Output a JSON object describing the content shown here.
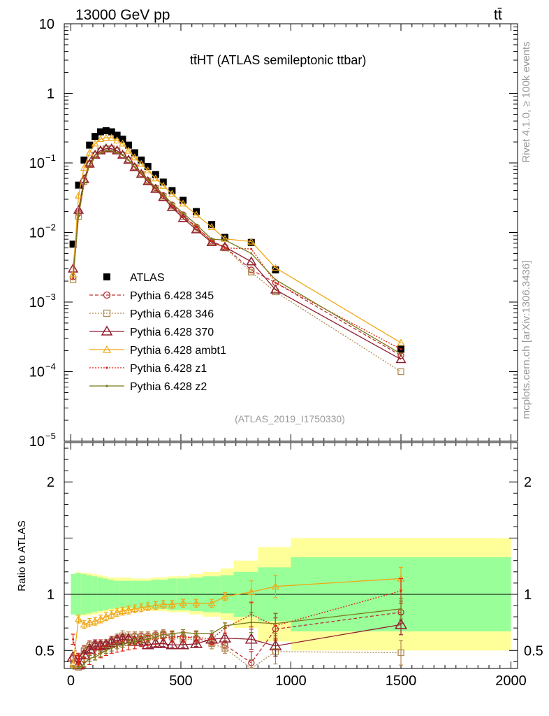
{
  "header": {
    "energy_label": "13000 GeV pp",
    "process_label": "tt̄",
    "rivet_label": "Rivet 4.1.0, ≥ 100k events",
    "mcplots_label": "mcplots.cern.ch [arXiv:1306.3436]"
  },
  "chart_data": {
    "type": "line",
    "title": "tt̄HT (ATLAS semileptonic ttbar)",
    "analysis_id": "(ATLAS_2019_I1750330)",
    "xlabel": "",
    "ylabel_ratio": "Ratio to ATLAS",
    "xlim": [
      -30,
      2030
    ],
    "ylim_main": [
      1e-05,
      10
    ],
    "ylim_ratio": [
      0.34,
      2.35
    ],
    "ylog_main": true,
    "x_ticks": [
      0,
      500,
      1000,
      1500,
      2000
    ],
    "main_y_ticks": [
      {
        "value": 10,
        "label": "10",
        "exp": ""
      },
      {
        "value": 1,
        "label": "1",
        "exp": ""
      },
      {
        "value": 0.1,
        "label": "10",
        "exp": "−1"
      },
      {
        "value": 0.01,
        "label": "10",
        "exp": "−2"
      },
      {
        "value": 0.001,
        "label": "10",
        "exp": "−3"
      },
      {
        "value": 0.0001,
        "label": "10",
        "exp": "−4"
      },
      {
        "value": 1e-05,
        "label": "10",
        "exp": "−5"
      }
    ],
    "ratio_y_ticks": [
      {
        "value": 2,
        "label": "2"
      },
      {
        "value": 1,
        "label": "1"
      },
      {
        "value": 0.5,
        "label": "0.5"
      }
    ],
    "x": [
      10,
      35,
      60,
      85,
      110,
      135,
      160,
      185,
      210,
      235,
      262,
      290,
      320,
      350,
      385,
      420,
      460,
      510,
      570,
      640,
      700,
      820,
      930,
      1500
    ],
    "ref_band": {
      "edges": [
        0,
        20,
        45,
        70,
        95,
        120,
        145,
        170,
        195,
        220,
        250,
        275,
        305,
        340,
        365,
        400,
        440,
        480,
        540,
        600,
        680,
        740,
        850,
        1000,
        2000
      ],
      "inner": [
        0.18,
        0.19,
        0.18,
        0.17,
        0.16,
        0.15,
        0.14,
        0.13,
        0.12,
        0.12,
        0.12,
        0.12,
        0.12,
        0.12,
        0.13,
        0.13,
        0.14,
        0.14,
        0.15,
        0.16,
        0.17,
        0.2,
        0.24,
        0.33
      ],
      "outer": [
        0.18,
        0.2,
        0.19,
        0.19,
        0.18,
        0.17,
        0.16,
        0.15,
        0.15,
        0.15,
        0.15,
        0.14,
        0.14,
        0.14,
        0.15,
        0.15,
        0.16,
        0.16,
        0.18,
        0.2,
        0.23,
        0.3,
        0.42,
        0.5
      ]
    },
    "series": [
      {
        "name": "ATLAS",
        "color": "#000000",
        "marker": "square",
        "dash": "none",
        "values": [
          0.0068,
          0.048,
          0.11,
          0.18,
          0.24,
          0.28,
          0.29,
          0.28,
          0.25,
          0.22,
          0.18,
          0.14,
          0.11,
          0.089,
          0.068,
          0.053,
          0.04,
          0.029,
          0.02,
          0.013,
          0.0085,
          0.0072,
          0.0029,
          0.00021
        ],
        "ratio": []
      },
      {
        "name": "Pythia 6.428 345",
        "color": "#b83232",
        "marker": "circle",
        "dash": "5,3",
        "values": [
          0.0023,
          0.019,
          0.056,
          0.098,
          0.13,
          0.15,
          0.16,
          0.16,
          0.15,
          0.13,
          0.11,
          0.087,
          0.07,
          0.056,
          0.044,
          0.034,
          0.025,
          0.018,
          0.012,
          0.0075,
          0.0062,
          0.0029,
          0.0019,
          0.00017
        ],
        "ratio": [
          0.43,
          0.44,
          0.51,
          0.55,
          0.56,
          0.56,
          0.56,
          0.59,
          0.61,
          0.62,
          0.61,
          0.63,
          0.63,
          0.63,
          0.64,
          0.64,
          0.63,
          0.62,
          0.61,
          0.58,
          0.55,
          0.39,
          0.69,
          0.84
        ]
      },
      {
        "name": "Pythia 6.428 346",
        "color": "#b08a50",
        "marker": "square-open",
        "dash": "2,2",
        "values": [
          0.0021,
          0.017,
          0.054,
          0.095,
          0.13,
          0.15,
          0.16,
          0.16,
          0.15,
          0.13,
          0.11,
          0.086,
          0.069,
          0.055,
          0.043,
          0.033,
          0.024,
          0.017,
          0.0115,
          0.0074,
          0.006,
          0.0027,
          0.0014,
          0.0001
        ],
        "ratio": [
          0.31,
          0.35,
          0.49,
          0.53,
          0.54,
          0.53,
          0.55,
          0.57,
          0.6,
          0.63,
          0.62,
          0.62,
          0.62,
          0.62,
          0.63,
          0.64,
          0.62,
          0.6,
          0.6,
          0.56,
          0.52,
          0.31,
          0.49,
          0.48
        ]
      },
      {
        "name": "Pythia 6.428 370",
        "color": "#8f1f2f",
        "marker": "triangle-open",
        "dash": "none",
        "values": [
          0.003,
          0.021,
          0.058,
          0.097,
          0.13,
          0.15,
          0.16,
          0.16,
          0.15,
          0.13,
          0.11,
          0.086,
          0.069,
          0.054,
          0.042,
          0.032,
          0.023,
          0.016,
          0.011,
          0.0072,
          0.0062,
          0.0038,
          0.0015,
          0.00015
        ],
        "ratio": [
          0.44,
          0.37,
          0.46,
          0.51,
          0.54,
          0.54,
          0.55,
          0.57,
          0.59,
          0.6,
          0.6,
          0.58,
          0.58,
          0.55,
          0.56,
          0.56,
          0.55,
          0.55,
          0.56,
          0.6,
          0.61,
          0.6,
          0.54,
          0.73
        ]
      },
      {
        "name": "Pythia 6.428 ambt1",
        "color": "#f0a818",
        "marker": "triangle-open-small",
        "dash": "none",
        "values": [
          0.0025,
          0.034,
          0.085,
          0.14,
          0.19,
          0.22,
          0.23,
          0.23,
          0.21,
          0.19,
          0.15,
          0.12,
          0.097,
          0.078,
          0.06,
          0.047,
          0.036,
          0.026,
          0.018,
          0.012,
          0.0081,
          0.0074,
          0.0031,
          0.00026
        ],
        "ratio": [
          0.38,
          0.78,
          0.73,
          0.75,
          0.76,
          0.78,
          0.8,
          0.82,
          0.84,
          0.85,
          0.86,
          0.87,
          0.88,
          0.89,
          0.9,
          0.91,
          0.91,
          0.92,
          0.92,
          0.92,
          0.98,
          1.02,
          1.07,
          1.14
        ]
      },
      {
        "name": "Pythia 6.428 z1",
        "color": "#dd2211",
        "marker": "dot",
        "dash": "2,2",
        "values": [
          0.0022,
          0.017,
          0.05,
          0.092,
          0.12,
          0.14,
          0.15,
          0.15,
          0.14,
          0.13,
          0.11,
          0.087,
          0.07,
          0.055,
          0.043,
          0.033,
          0.024,
          0.017,
          0.012,
          0.0075,
          0.006,
          0.0058,
          0.0019,
          0.00021
        ],
        "ratio": [
          0.6,
          0.41,
          0.39,
          0.42,
          0.46,
          0.48,
          0.5,
          0.52,
          0.53,
          0.54,
          0.55,
          0.56,
          0.58,
          0.59,
          0.6,
          0.61,
          0.62,
          0.62,
          0.62,
          0.6,
          0.7,
          0.82,
          0.72,
          1.03
        ]
      },
      {
        "name": "Pythia 6.428 z2",
        "color": "#7b7b1a",
        "marker": "dot",
        "dash": "none",
        "values": [
          0.0024,
          0.018,
          0.051,
          0.093,
          0.12,
          0.14,
          0.15,
          0.15,
          0.14,
          0.13,
          0.11,
          0.088,
          0.072,
          0.057,
          0.045,
          0.035,
          0.026,
          0.019,
          0.013,
          0.008,
          0.0078,
          0.005,
          0.0021,
          0.00018
        ],
        "ratio": [
          0.34,
          0.33,
          0.38,
          0.43,
          0.44,
          0.47,
          0.5,
          0.52,
          0.54,
          0.55,
          0.57,
          0.58,
          0.59,
          0.6,
          0.62,
          0.64,
          0.65,
          0.66,
          0.65,
          0.65,
          0.72,
          0.75,
          0.74,
          0.87
        ]
      }
    ]
  }
}
